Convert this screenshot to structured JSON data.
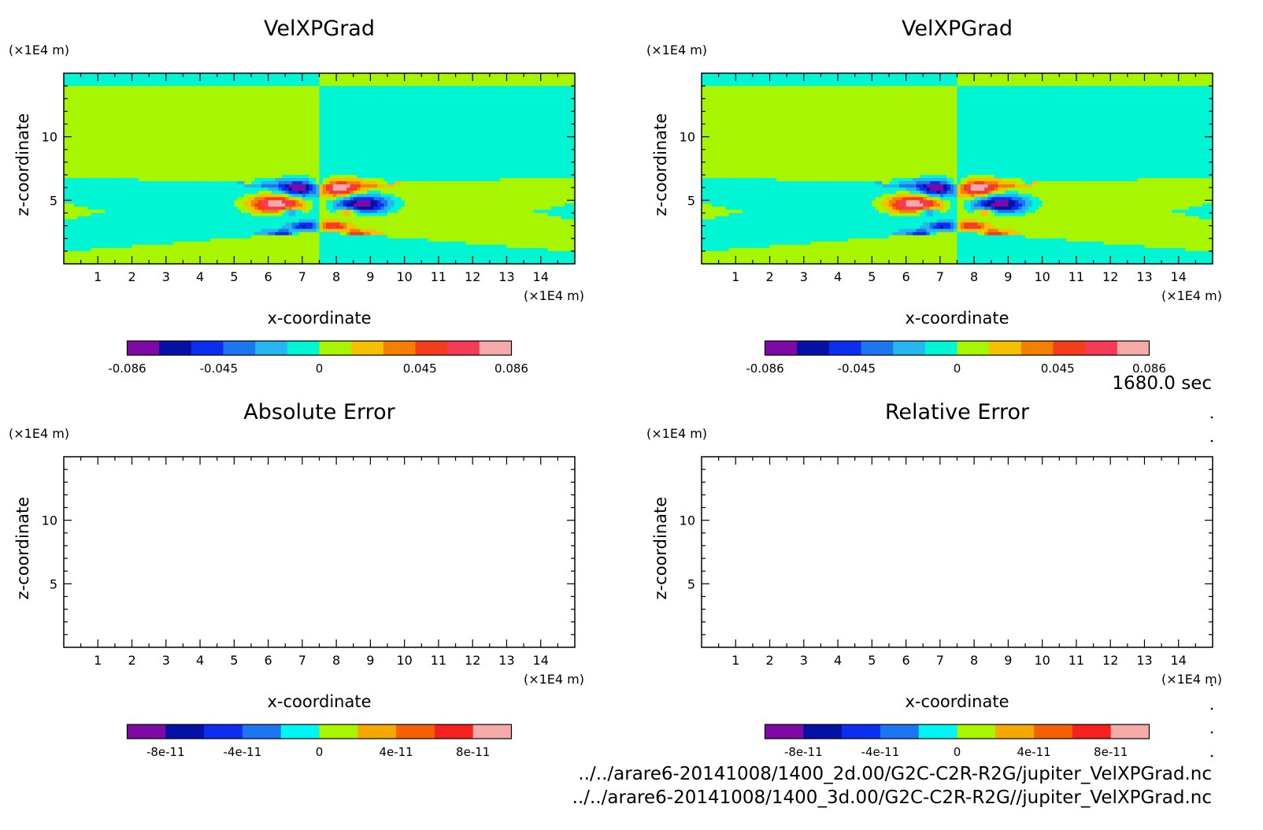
{
  "time_label": "1680.0 sec",
  "file_paths": [
    "../../arare6-20141008/1400_2d.00/G2C-C2R-R2G/jupiter_VelXPGrad.nc",
    "../../arare6-20141008/1400_3d.00/G2C-C2R-R2G//jupiter_VelXPGrad.nc"
  ],
  "palettes": {
    "field": [
      "#7e0aa6",
      "#0510a5",
      "#0a2ff0",
      "#1c76f0",
      "#25b5f0",
      "#00f5d5",
      "#a8f500",
      "#f5c000",
      "#f58000",
      "#f53c1c",
      "#f53a55",
      "#f5aaaa"
    ],
    "error": [
      "#7e0aa6",
      "#0510a5",
      "#0a2ff0",
      "#1c76f0",
      "#00f5f5",
      "#a8f500",
      "#f5a800",
      "#f56000",
      "#f52020",
      "#f5aaaa"
    ]
  },
  "chart_data": [
    {
      "type": "heatmap",
      "title": "VelXPGrad",
      "xlabel": "x-coordinate",
      "ylabel": "z-coordinate",
      "x_unit": "(×1E4 m)",
      "y_unit": "(×1E4 m)",
      "xlim": [
        0,
        15
      ],
      "ylim": [
        0,
        15
      ],
      "x_ticks": [
        1,
        2,
        3,
        4,
        5,
        6,
        7,
        8,
        9,
        10,
        11,
        12,
        13,
        14
      ],
      "y_ticks": [
        5,
        10
      ],
      "colorbar": {
        "range": [
          -0.086,
          0.086
        ],
        "tick_values": [
          -0.086,
          -0.045,
          0,
          0.045,
          0.086
        ],
        "tick_labels": [
          "-0.086",
          "-0.045",
          "0",
          "0.045",
          "0.086"
        ]
      },
      "field": "velxpgrad"
    },
    {
      "type": "heatmap",
      "title": "VelXPGrad",
      "xlabel": "x-coordinate",
      "ylabel": "z-coordinate",
      "x_unit": "(×1E4 m)",
      "y_unit": "(×1E4 m)",
      "xlim": [
        0,
        15
      ],
      "ylim": [
        0,
        15
      ],
      "x_ticks": [
        1,
        2,
        3,
        4,
        5,
        6,
        7,
        8,
        9,
        10,
        11,
        12,
        13,
        14
      ],
      "y_ticks": [
        5,
        10
      ],
      "colorbar": {
        "range": [
          -0.086,
          0.086
        ],
        "tick_values": [
          -0.086,
          -0.045,
          0,
          0.045,
          0.086
        ],
        "tick_labels": [
          "-0.086",
          "-0.045",
          "0",
          "0.045",
          "0.086"
        ]
      },
      "field": "velxpgrad"
    },
    {
      "type": "heatmap",
      "title": "Absolute Error",
      "xlabel": "x-coordinate",
      "ylabel": "z-coordinate",
      "x_unit": "(×1E4 m)",
      "y_unit": "(×1E4 m)",
      "xlim": [
        0,
        15
      ],
      "ylim": [
        0,
        15
      ],
      "x_ticks": [
        1,
        2,
        3,
        4,
        5,
        6,
        7,
        8,
        9,
        10,
        11,
        12,
        13,
        14
      ],
      "y_ticks": [
        5,
        10
      ],
      "colorbar": {
        "range": [
          -1e-10,
          1e-10
        ],
        "tick_values": [
          -8e-11,
          -4e-11,
          0,
          4e-11,
          8e-11
        ],
        "tick_labels": [
          "-8e-11",
          "-4e-11",
          "0",
          "4e-11",
          "8e-11"
        ]
      },
      "field": "empty"
    },
    {
      "type": "heatmap",
      "title": "Relative Error",
      "xlabel": "x-coordinate",
      "ylabel": "z-coordinate",
      "x_unit": "(×1E4 m)",
      "y_unit": "(×1E4 m)",
      "xlim": [
        0,
        15
      ],
      "ylim": [
        0,
        15
      ],
      "x_ticks": [
        1,
        2,
        3,
        4,
        5,
        6,
        7,
        8,
        9,
        10,
        11,
        12,
        13,
        14
      ],
      "y_ticks": [
        5,
        10
      ],
      "colorbar": {
        "range": [
          -1e-10,
          1e-10
        ],
        "tick_values": [
          -8e-11,
          -4e-11,
          0,
          4e-11,
          8e-11
        ],
        "tick_labels": [
          "-8e-11",
          "-4e-11",
          "0",
          "4e-11",
          "8e-11"
        ]
      },
      "field": "empty"
    }
  ]
}
